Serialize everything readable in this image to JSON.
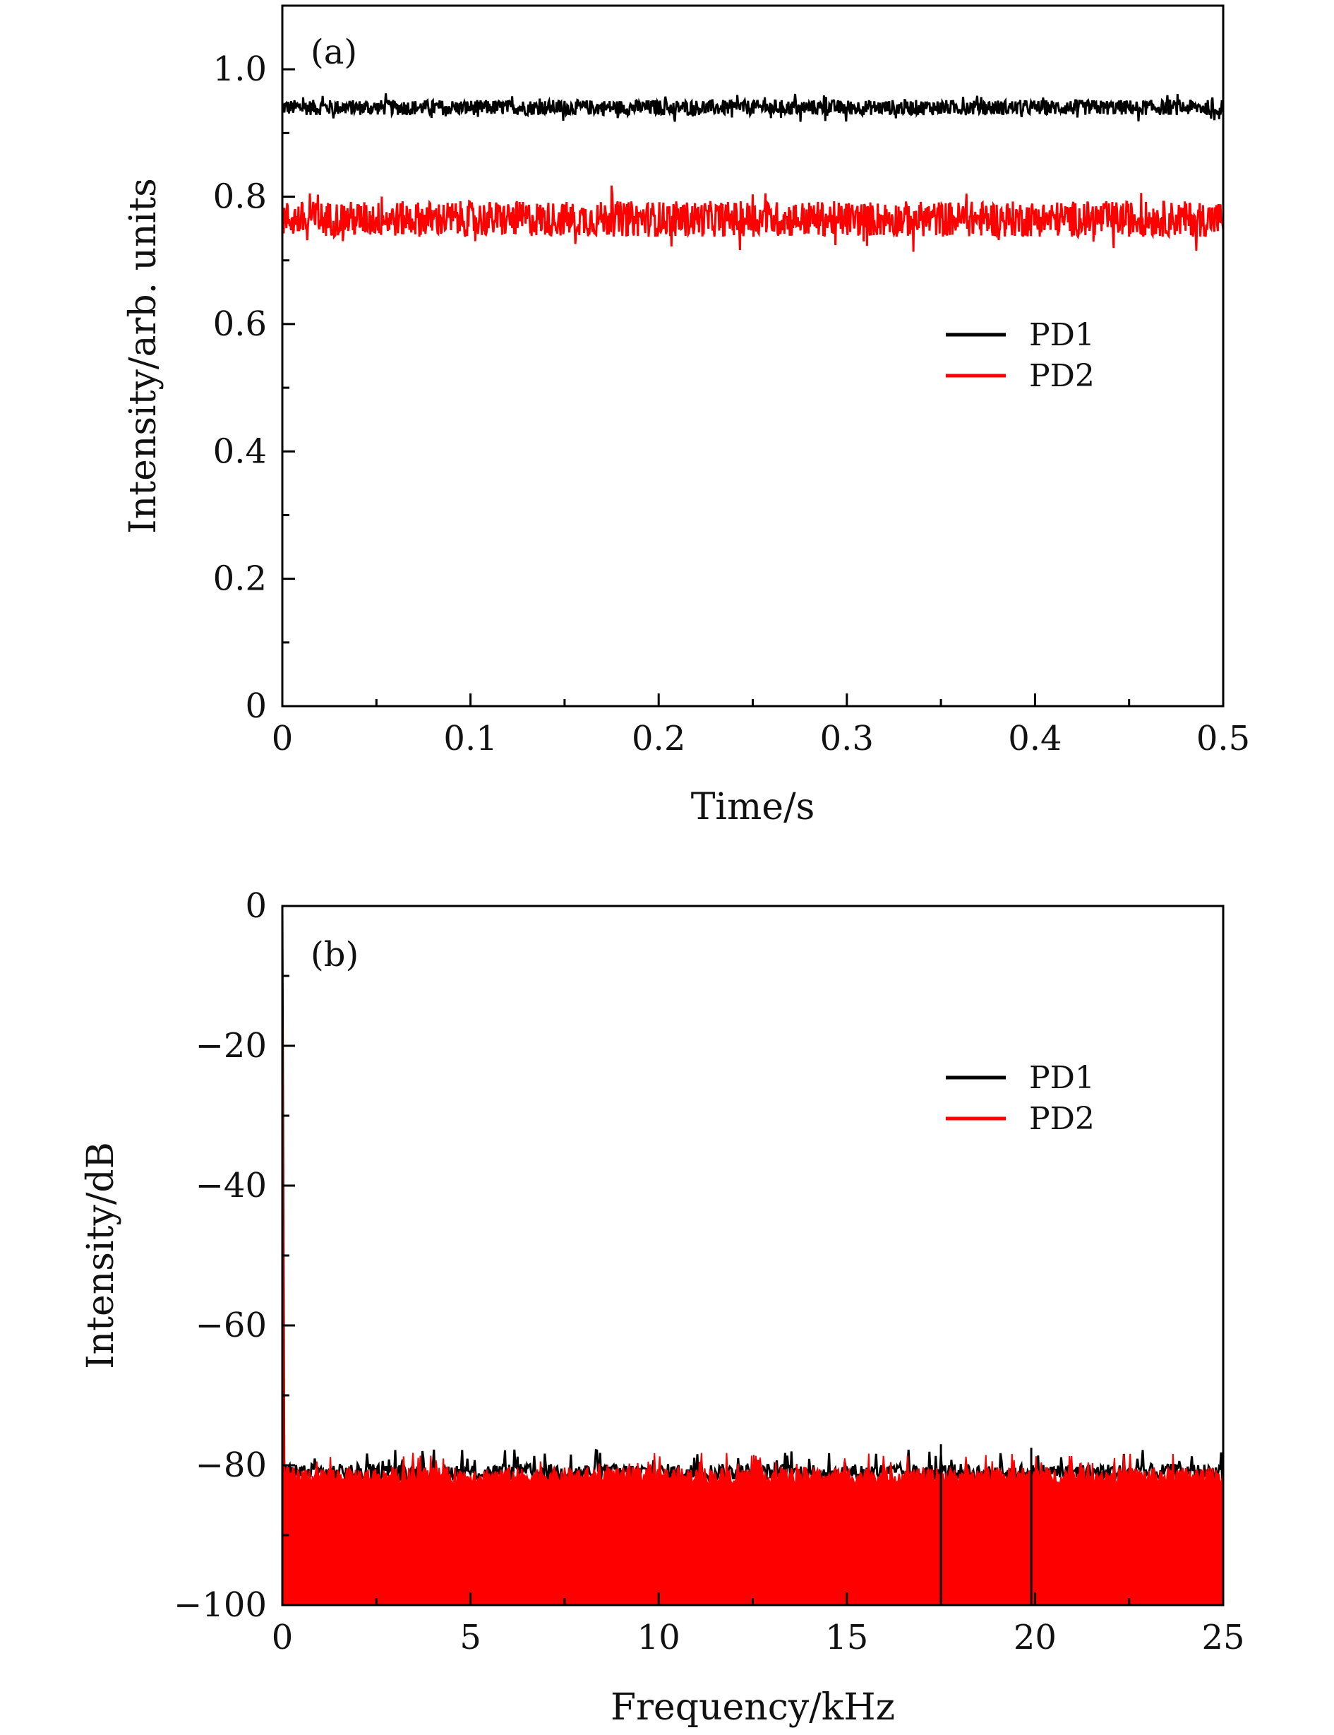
{
  "chart_data": [
    {
      "type": "line",
      "panel_label": "(a)",
      "xlabel": "Time/s",
      "ylabel": "Intensity/arb. units",
      "xlim": [
        0,
        0.5
      ],
      "ylim": [
        0,
        1.1
      ],
      "xticks": [
        0,
        0.1,
        0.2,
        0.3,
        0.4,
        0.5
      ],
      "xtick_labels": [
        "0",
        "0.1",
        "0.2",
        "0.3",
        "0.4",
        "0.5"
      ],
      "yticks": [
        0,
        0.2,
        0.4,
        0.6,
        0.8,
        1.0
      ],
      "ytick_labels": [
        "0",
        "0.2",
        "0.4",
        "0.6",
        "0.8",
        "1.0"
      ],
      "legend_position": "right-middle",
      "series": [
        {
          "name": "PD1",
          "color": "#000000",
          "mean": 0.94,
          "noise_range": [
            0.925,
            0.955
          ]
        },
        {
          "name": "PD2",
          "color": "#ff0000",
          "mean": 0.765,
          "noise_range": [
            0.735,
            0.805
          ]
        }
      ]
    },
    {
      "type": "area",
      "panel_label": "(b)",
      "xlabel": "Frequency/kHz",
      "ylabel": "Intensity/dB",
      "xlim": [
        0,
        25
      ],
      "ylim": [
        -100,
        0
      ],
      "xticks": [
        0,
        5,
        10,
        15,
        20,
        25
      ],
      "xtick_labels": [
        "0",
        "5",
        "10",
        "15",
        "20",
        "25"
      ],
      "yticks": [
        -100,
        -80,
        -60,
        -40,
        -20,
        0
      ],
      "ytick_labels": [
        "−100",
        "−80",
        "−60",
        "−40",
        "−20",
        "0"
      ],
      "legend_position": "top-right",
      "series": [
        {
          "name": "PD1",
          "color": "#000000",
          "dc_peak": 0,
          "noise_floor": -81,
          "noise_range": [
            -83,
            -78
          ]
        },
        {
          "name": "PD2",
          "color": "#ff0000",
          "dc_peak": 0,
          "noise_floor": -81.5,
          "noise_range": [
            -83,
            -79
          ]
        }
      ],
      "annotations": [
        {
          "x": 17.5,
          "y": -77
        },
        {
          "x": 19.9,
          "y": -77.5
        }
      ]
    }
  ]
}
